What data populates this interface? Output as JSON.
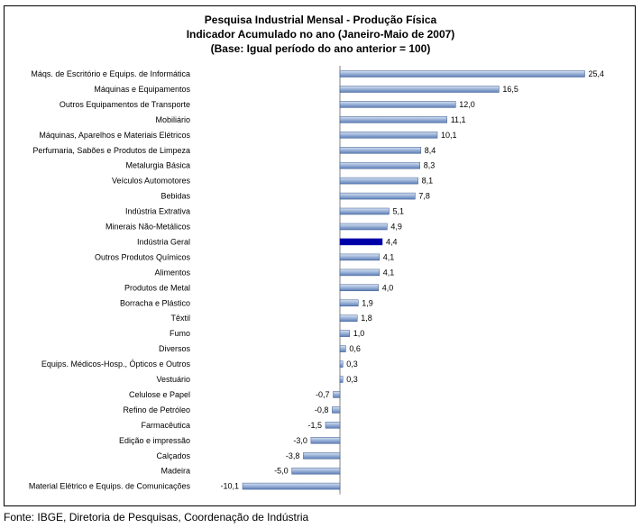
{
  "chart_data": {
    "type": "bar",
    "orientation": "horizontal",
    "title_lines": [
      "Pesquisa Industrial Mensal - Produção Física",
      "Indicador Acumulado no ano (Janeiro-Maio de 2007)",
      "(Base: Igual período do ano anterior = 100)"
    ],
    "categories": [
      "Máqs. de Escritório e Equips. de Informática",
      "Máquinas e Equipamentos",
      "Outros Equipamentos de Transporte",
      "Mobiliário",
      "Máquinas, Aparelhos e Materiais Elétricos",
      "Perfumaria, Sabões e Produtos de Limpeza",
      "Metalurgia Básica",
      "Veículos Automotores",
      "Bebidas",
      "Indústria Extrativa",
      "Minerais Não-Metálicos",
      "Indústria Geral",
      "Outros Produtos Químicos",
      "Alimentos",
      "Produtos de Metal",
      "Borracha e Plástico",
      "Têxtil",
      "Fumo",
      "Diversos",
      "Equips. Médicos-Hosp., Ópticos e Outros",
      "Vestuário",
      "Celulose e Papel",
      "Refino de Petróleo",
      "Farmacêutica",
      "Edição e impressão",
      "Calçados",
      "Madeira",
      "Material Elétrico e Equips. de Comunicações"
    ],
    "values": [
      25.4,
      16.5,
      12.0,
      11.1,
      10.1,
      8.4,
      8.3,
      8.1,
      7.8,
      5.1,
      4.9,
      4.4,
      4.1,
      4.1,
      4.0,
      1.9,
      1.8,
      1.0,
      0.6,
      0.3,
      0.3,
      -0.7,
      -0.8,
      -1.5,
      -3.0,
      -3.8,
      -5.0,
      -10.1
    ],
    "value_labels": [
      "25,4",
      "16,5",
      "12,0",
      "11,1",
      "10,1",
      "8,4",
      "8,3",
      "8,1",
      "7,8",
      "5,1",
      "4,9",
      "4,4",
      "4,1",
      "4,1",
      "4,0",
      "1,9",
      "1,8",
      "1,0",
      "0,6",
      "0,3",
      "0,3",
      "-0,7",
      "-0,8",
      "-1,5",
      "-3,0",
      "-3,8",
      "-5,0",
      "-10,1"
    ],
    "highlight_category": "Indústria Geral",
    "colors": {
      "bar_top": "#d6e2f4",
      "bar_bottom": "#5d7fb8",
      "bar_edge": "#3c5a8c",
      "highlight": "#0000a8",
      "axis": "#808080"
    },
    "xlim": [
      -10.1,
      25.4
    ],
    "grid": false,
    "legend": "none"
  },
  "footer": {
    "source": "Fonte: IBGE, Diretoria de Pesquisas, Coordenação de Indústria"
  }
}
